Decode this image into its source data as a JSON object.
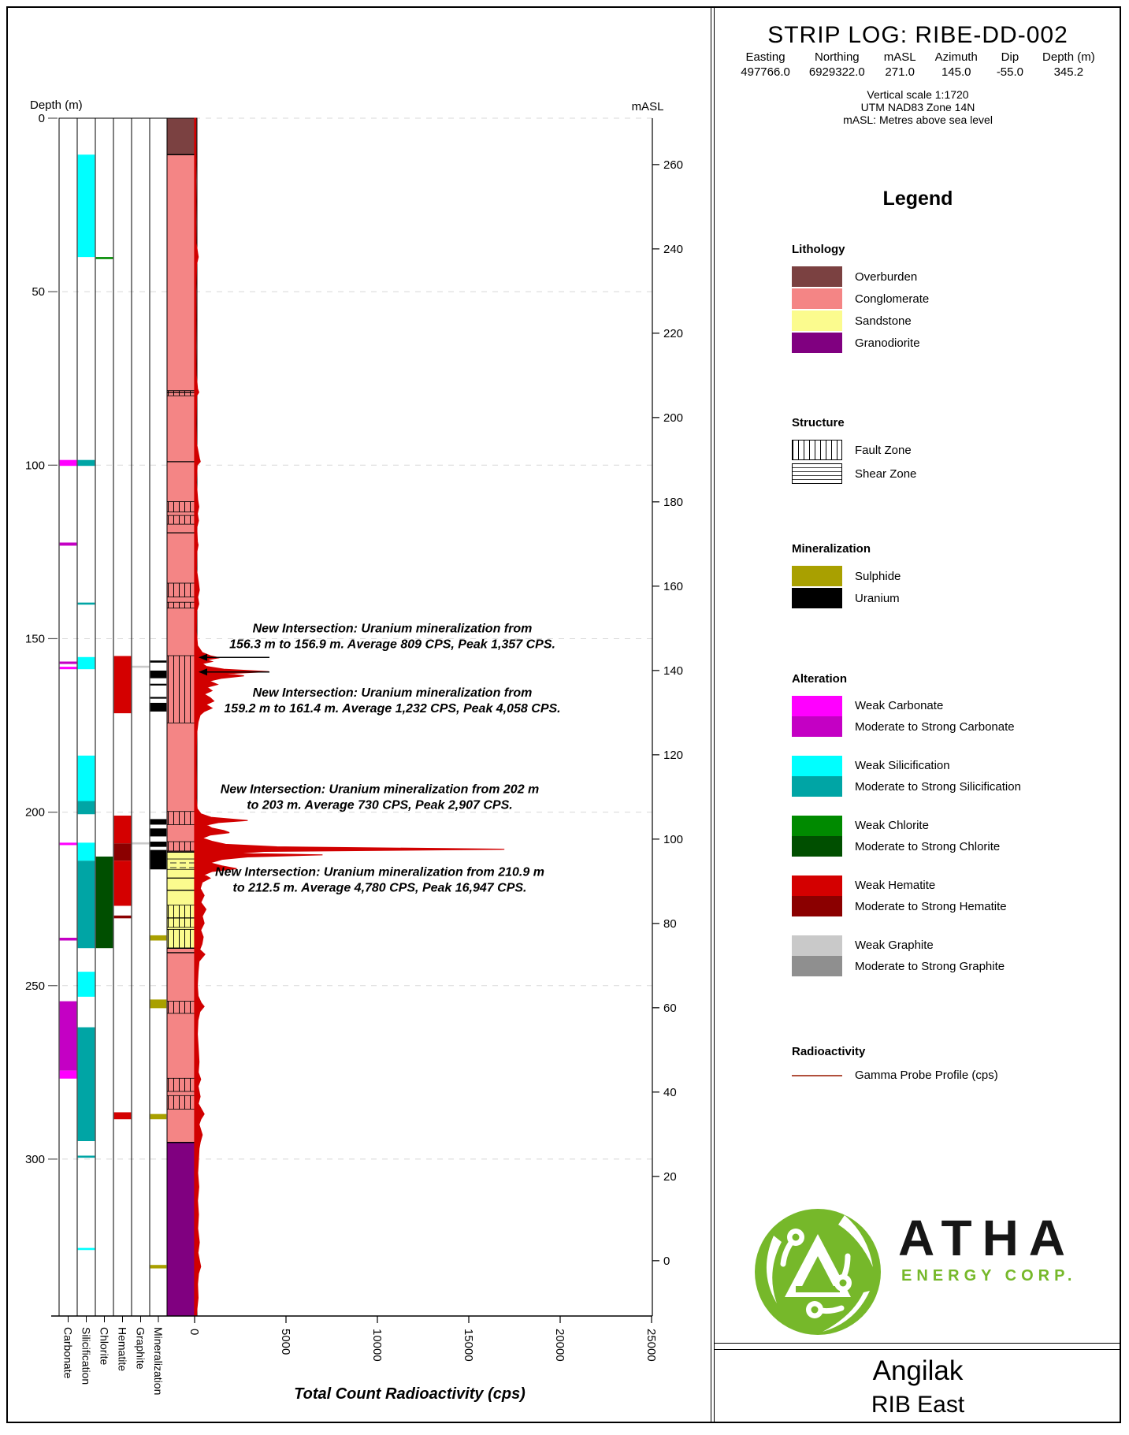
{
  "header": {
    "title": "STRIP LOG: RIBE-DD-002",
    "fields": [
      {
        "label": "Easting",
        "value": "497766.0"
      },
      {
        "label": "Northing",
        "value": "6929322.0"
      },
      {
        "label": "mASL",
        "value": "271.0"
      },
      {
        "label": "Azimuth",
        "value": "145.0"
      },
      {
        "label": "Dip",
        "value": "-55.0"
      },
      {
        "label": "Depth (m)",
        "value": "345.2"
      }
    ],
    "notes": [
      "Vertical scale 1:1720",
      "UTM NAD83 Zone 14N",
      "mASL: Metres above sea level"
    ]
  },
  "colors": {
    "overburden": "#7B4141",
    "conglomerate": "#F48585",
    "sandstone": "#FBFB8E",
    "granodiorite": "#800080",
    "carbonate_weak": "#FF00FF",
    "carbonate_strong": "#C400C4",
    "silicification_weak": "#00FFFF",
    "silicification_strong": "#00A5A5",
    "chlorite_weak": "#008A00",
    "chlorite_strong": "#004F00",
    "hematite_weak": "#D40000",
    "hematite_strong": "#8B0000",
    "graphite_weak": "#C9C9C9",
    "graphite_strong": "#8F8F8F",
    "sulphide": "#A9A000",
    "uranium": "#000000",
    "gamma_trace": "#D10000",
    "gamma_legend": "#B1503C",
    "grid": "#D8D8D8",
    "logo_green": "#76B82A",
    "logo_dark": "#161616"
  },
  "legend": {
    "title": "Legend",
    "sections": [
      {
        "name": "lithology",
        "title": "Lithology",
        "items": [
          {
            "label": "Overburden",
            "swatch": "overburden"
          },
          {
            "label": "Conglomerate",
            "swatch": "conglomerate"
          },
          {
            "label": "Sandstone",
            "swatch": "sandstone"
          },
          {
            "label": "Granodiorite",
            "swatch": "granodiorite"
          }
        ]
      },
      {
        "name": "structure",
        "title": "Structure",
        "items": [
          {
            "label": "Fault Zone",
            "swatch": "fault-hatch"
          },
          {
            "label": "Shear Zone",
            "swatch": "shear-hatch"
          }
        ]
      },
      {
        "name": "mineralization",
        "title": "Mineralization",
        "items": [
          {
            "label": "Sulphide",
            "swatch": "sulphide"
          },
          {
            "label": "Uranium",
            "swatch": "uranium"
          }
        ]
      },
      {
        "name": "alteration",
        "title": "Alteration",
        "items": [
          {
            "label": "Weak Carbonate",
            "label2": "Moderate to Strong Carbonate",
            "swatch": "carbonate_weak",
            "swatch2": "carbonate_strong"
          },
          {
            "label": "Weak Silicification",
            "label2": "Moderate to Strong Silicification",
            "swatch": "silicification_weak",
            "swatch2": "silicification_strong"
          },
          {
            "label": "Weak Chlorite",
            "label2": "Moderate to Strong Chlorite",
            "swatch": "chlorite_weak",
            "swatch2": "chlorite_strong"
          },
          {
            "label": "Weak Hematite",
            "label2": "Moderate to Strong Hematite",
            "swatch": "hematite_weak",
            "swatch2": "hematite_strong"
          },
          {
            "label": "Weak Graphite",
            "label2": "Moderate to Strong Graphite",
            "swatch": "graphite_weak",
            "swatch2": "graphite_strong"
          }
        ]
      },
      {
        "name": "radioactivity",
        "title": "Radioactivity",
        "items": [
          {
            "label": "Gamma Probe Profile (cps)",
            "swatch": "gamma-line"
          }
        ]
      }
    ]
  },
  "logo": {
    "name": "ATHA",
    "subtitle": "ENERGY CORP."
  },
  "footer": {
    "line1": "Angilak",
    "line2": "RIB East"
  },
  "chart_data": {
    "type": "strip-log",
    "depth_axis": {
      "label": "Depth (m)",
      "min": 0,
      "max": 345.2,
      "ticks": [
        0,
        50,
        100,
        150,
        200,
        250,
        300
      ]
    },
    "masl_axis": {
      "label": "mASL",
      "surface_masl": 271.0,
      "ticks": [
        260,
        240,
        220,
        200,
        180,
        160,
        140,
        120,
        100,
        80,
        60,
        40,
        20,
        0
      ]
    },
    "gamma_axis": {
      "label": "Total Count Radioactivity (cps)",
      "min": 0,
      "max": 25000,
      "ticks": [
        0,
        5000,
        10000,
        15000,
        20000,
        25000
      ]
    },
    "columns": [
      "Carbonate",
      "Silicification",
      "Chlorite",
      "Hematite",
      "Graphite",
      "Mineralization"
    ],
    "alteration": {
      "Carbonate": [
        [
          98.5,
          100.2,
          "weak"
        ],
        [
          122.3,
          123.2,
          "strong"
        ],
        [
          156.6,
          157.3,
          "strong"
        ],
        [
          158.1,
          158.8,
          "weak"
        ],
        [
          208.8,
          209.5,
          "weak"
        ],
        [
          236.2,
          237.0,
          "strong"
        ],
        [
          254.5,
          274.5,
          "strong"
        ],
        [
          274.5,
          276.8,
          "weak"
        ]
      ],
      "Silicification": [
        [
          10.5,
          40,
          "weak"
        ],
        [
          98.5,
          100.2,
          "strong"
        ],
        [
          139.6,
          140.2,
          "strong"
        ],
        [
          155.3,
          158.8,
          "weak"
        ],
        [
          183.7,
          196.8,
          "weak"
        ],
        [
          196.8,
          200.6,
          "strong"
        ],
        [
          208.8,
          214,
          "weak"
        ],
        [
          214,
          239.2,
          "strong"
        ],
        [
          246,
          253.2,
          "weak"
        ],
        [
          262,
          294.8,
          "strong"
        ],
        [
          299,
          299.6,
          "strong"
        ],
        [
          325.6,
          326.2,
          "weak"
        ]
      ],
      "Chlorite": [
        [
          40,
          40.6,
          "weak"
        ],
        [
          212.8,
          239.2,
          "strong"
        ]
      ],
      "Hematite": [
        [
          155,
          171.5,
          "weak"
        ],
        [
          201,
          209,
          "weak"
        ],
        [
          209,
          214,
          "strong"
        ],
        [
          214,
          227,
          "weak"
        ],
        [
          229.8,
          230.6,
          "strong"
        ],
        [
          286.5,
          288.5,
          "weak"
        ]
      ],
      "Graphite": [
        [
          157.8,
          158.4,
          "weak"
        ],
        [
          208.7,
          209.3,
          "weak"
        ]
      ]
    },
    "mineralization": [
      [
        156.3,
        156.9,
        "uranium"
      ],
      [
        159.2,
        161.4,
        "uranium"
      ],
      [
        163,
        163.5,
        "uranium"
      ],
      [
        166.8,
        167.3,
        "uranium"
      ],
      [
        168.5,
        171,
        "uranium"
      ],
      [
        202,
        203.6,
        "uranium"
      ],
      [
        204.7,
        207,
        "uranium"
      ],
      [
        208.5,
        210,
        "uranium"
      ],
      [
        210.9,
        216.5,
        "uranium"
      ],
      [
        235.5,
        237,
        "sulphide"
      ],
      [
        254,
        256.5,
        "sulphide"
      ],
      [
        287,
        288.5,
        "sulphide"
      ],
      [
        330.5,
        331.5,
        "sulphide"
      ]
    ],
    "lithology": [
      [
        0,
        10.5,
        "Overburden"
      ],
      [
        10.5,
        211.5,
        "Conglomerate"
      ],
      [
        211.5,
        239.2,
        "Sandstone"
      ],
      [
        239.2,
        295.2,
        "Conglomerate"
      ],
      [
        295.2,
        345.2,
        "Granodiorite"
      ]
    ],
    "structure": [
      [
        78.5,
        80,
        "fault"
      ],
      [
        110.5,
        113.5,
        "fault"
      ],
      [
        114.5,
        117,
        "fault"
      ],
      [
        134,
        138,
        "fault"
      ],
      [
        139.5,
        141.2,
        "fault"
      ],
      [
        154.9,
        174.3,
        "fault"
      ],
      [
        199.8,
        203.6,
        "fault"
      ],
      [
        208.5,
        211.2,
        "fault"
      ],
      [
        213.5,
        216.5,
        "shear"
      ],
      [
        226.8,
        233.2,
        "fault"
      ],
      [
        233.8,
        239.2,
        "fault"
      ],
      [
        254.5,
        258,
        "fault"
      ],
      [
        276.7,
        280.5,
        "fault"
      ],
      [
        281.7,
        285.6,
        "fault"
      ],
      [
        79,
        79,
        "bed"
      ],
      [
        99,
        99,
        "bed"
      ],
      [
        119.5,
        119.5,
        "bed"
      ],
      [
        219,
        219,
        "bed"
      ],
      [
        222.5,
        222.5,
        "bed"
      ],
      [
        230.5,
        230.5,
        "bed"
      ],
      [
        240.5,
        240.5,
        "bed"
      ]
    ],
    "annotations": [
      {
        "lines": [
          "New Intersection: Uranium mineralization from",
          "156.3 m to 156.9 m. Average 809 CPS, Peak 1,357 CPS."
        ],
        "text_depth": 145.0,
        "arrow_depth": 155.4
      },
      {
        "lines": [
          "New Intersection: Uranium mineralization from",
          "159.2 m to 161.4 m. Average 1,232 CPS, Peak 4,058 CPS."
        ],
        "text_depth": 163.5,
        "arrow_depth": 159.6
      },
      {
        "lines": [
          "New Intersection: Uranium mineralization from 202 m",
          "to 203 m. Average 730 CPS, Peak 2,907 CPS."
        ],
        "text_depth": 191.3,
        "arrow_depth": null
      },
      {
        "lines": [
          "New Intersection: Uranium mineralization from 210.9 m",
          "to 212.5 m. Average 4,780 CPS, Peak 16,947 CPS."
        ],
        "text_depth": 215.2,
        "arrow_depth": null
      }
    ],
    "gamma_profile": [
      [
        0,
        70
      ],
      [
        6,
        60
      ],
      [
        12,
        85
      ],
      [
        18,
        65
      ],
      [
        24,
        80
      ],
      [
        30,
        70
      ],
      [
        36,
        80
      ],
      [
        40,
        200
      ],
      [
        42,
        110
      ],
      [
        50,
        70
      ],
      [
        58,
        80
      ],
      [
        66,
        70
      ],
      [
        74,
        90
      ],
      [
        78,
        160
      ],
      [
        79,
        230
      ],
      [
        80,
        110
      ],
      [
        88,
        85
      ],
      [
        94,
        110
      ],
      [
        98,
        260
      ],
      [
        99,
        310
      ],
      [
        100,
        140
      ],
      [
        105,
        95
      ],
      [
        110,
        170
      ],
      [
        112,
        230
      ],
      [
        114,
        150
      ],
      [
        116,
        210
      ],
      [
        118,
        115
      ],
      [
        122,
        150
      ],
      [
        123,
        190
      ],
      [
        125,
        120
      ],
      [
        130,
        100
      ],
      [
        134,
        210
      ],
      [
        136,
        260
      ],
      [
        138,
        170
      ],
      [
        140,
        230
      ],
      [
        142,
        110
      ],
      [
        148,
        95
      ],
      [
        152,
        160
      ],
      [
        154,
        420
      ],
      [
        155,
        900
      ],
      [
        155.5,
        1357
      ],
      [
        156.1,
        650
      ],
      [
        156.6,
        950
      ],
      [
        157.2,
        420
      ],
      [
        158,
        650
      ],
      [
        158.8,
        1600
      ],
      [
        159.5,
        4058
      ],
      [
        160.1,
        1700
      ],
      [
        160.7,
        2700
      ],
      [
        161.4,
        1500
      ],
      [
        162.2,
        800
      ],
      [
        163.2,
        1250
      ],
      [
        164,
        680
      ],
      [
        165,
        950
      ],
      [
        166,
        520
      ],
      [
        167,
        850
      ],
      [
        168,
        1050
      ],
      [
        169,
        620
      ],
      [
        170,
        950
      ],
      [
        171,
        520
      ],
      [
        172,
        300
      ],
      [
        174,
        190
      ],
      [
        177,
        120
      ],
      [
        181,
        100
      ],
      [
        186,
        90
      ],
      [
        191,
        105
      ],
      [
        196,
        95
      ],
      [
        199,
        140
      ],
      [
        200.5,
        350
      ],
      [
        201.5,
        900
      ],
      [
        202.4,
        2907
      ],
      [
        203,
        1300
      ],
      [
        203.7,
        650
      ],
      [
        204.6,
        950
      ],
      [
        205.3,
        1600
      ],
      [
        205.9,
        1900
      ],
      [
        206.6,
        850
      ],
      [
        207.5,
        420
      ],
      [
        208.4,
        950
      ],
      [
        209.3,
        1700
      ],
      [
        210,
        4500
      ],
      [
        210.7,
        16947
      ],
      [
        211.3,
        3800
      ],
      [
        211.9,
        2300
      ],
      [
        212.3,
        7000
      ],
      [
        212.9,
        2900
      ],
      [
        213.6,
        1500
      ],
      [
        214.6,
        850
      ],
      [
        215.5,
        1500
      ],
      [
        216.3,
        2300
      ],
      [
        217.1,
        950
      ],
      [
        218,
        520
      ],
      [
        219,
        850
      ],
      [
        220.2,
        420
      ],
      [
        222,
        310
      ],
      [
        224,
        520
      ],
      [
        226,
        340
      ],
      [
        228,
        620
      ],
      [
        230,
        420
      ],
      [
        232,
        520
      ],
      [
        234,
        330
      ],
      [
        236,
        470
      ],
      [
        238,
        400
      ],
      [
        239.6,
        280
      ],
      [
        241,
        560
      ],
      [
        243,
        240
      ],
      [
        246,
        190
      ],
      [
        250,
        150
      ],
      [
        253,
        190
      ],
      [
        255,
        360
      ],
      [
        256,
        520
      ],
      [
        257.5,
        290
      ],
      [
        260,
        180
      ],
      [
        264,
        150
      ],
      [
        268,
        200
      ],
      [
        272,
        240
      ],
      [
        275,
        200
      ],
      [
        277,
        330
      ],
      [
        279,
        190
      ],
      [
        282,
        300
      ],
      [
        284,
        200
      ],
      [
        287,
        520
      ],
      [
        288.5,
        340
      ],
      [
        290,
        240
      ],
      [
        293,
        420
      ],
      [
        295,
        310
      ],
      [
        297,
        240
      ],
      [
        300,
        210
      ],
      [
        304,
        170
      ],
      [
        308,
        230
      ],
      [
        312,
        160
      ],
      [
        316,
        210
      ],
      [
        320,
        170
      ],
      [
        324,
        260
      ],
      [
        327,
        180
      ],
      [
        331,
        330
      ],
      [
        333,
        210
      ],
      [
        336,
        160
      ],
      [
        340,
        190
      ],
      [
        343,
        130
      ],
      [
        345.2,
        100
      ]
    ]
  }
}
